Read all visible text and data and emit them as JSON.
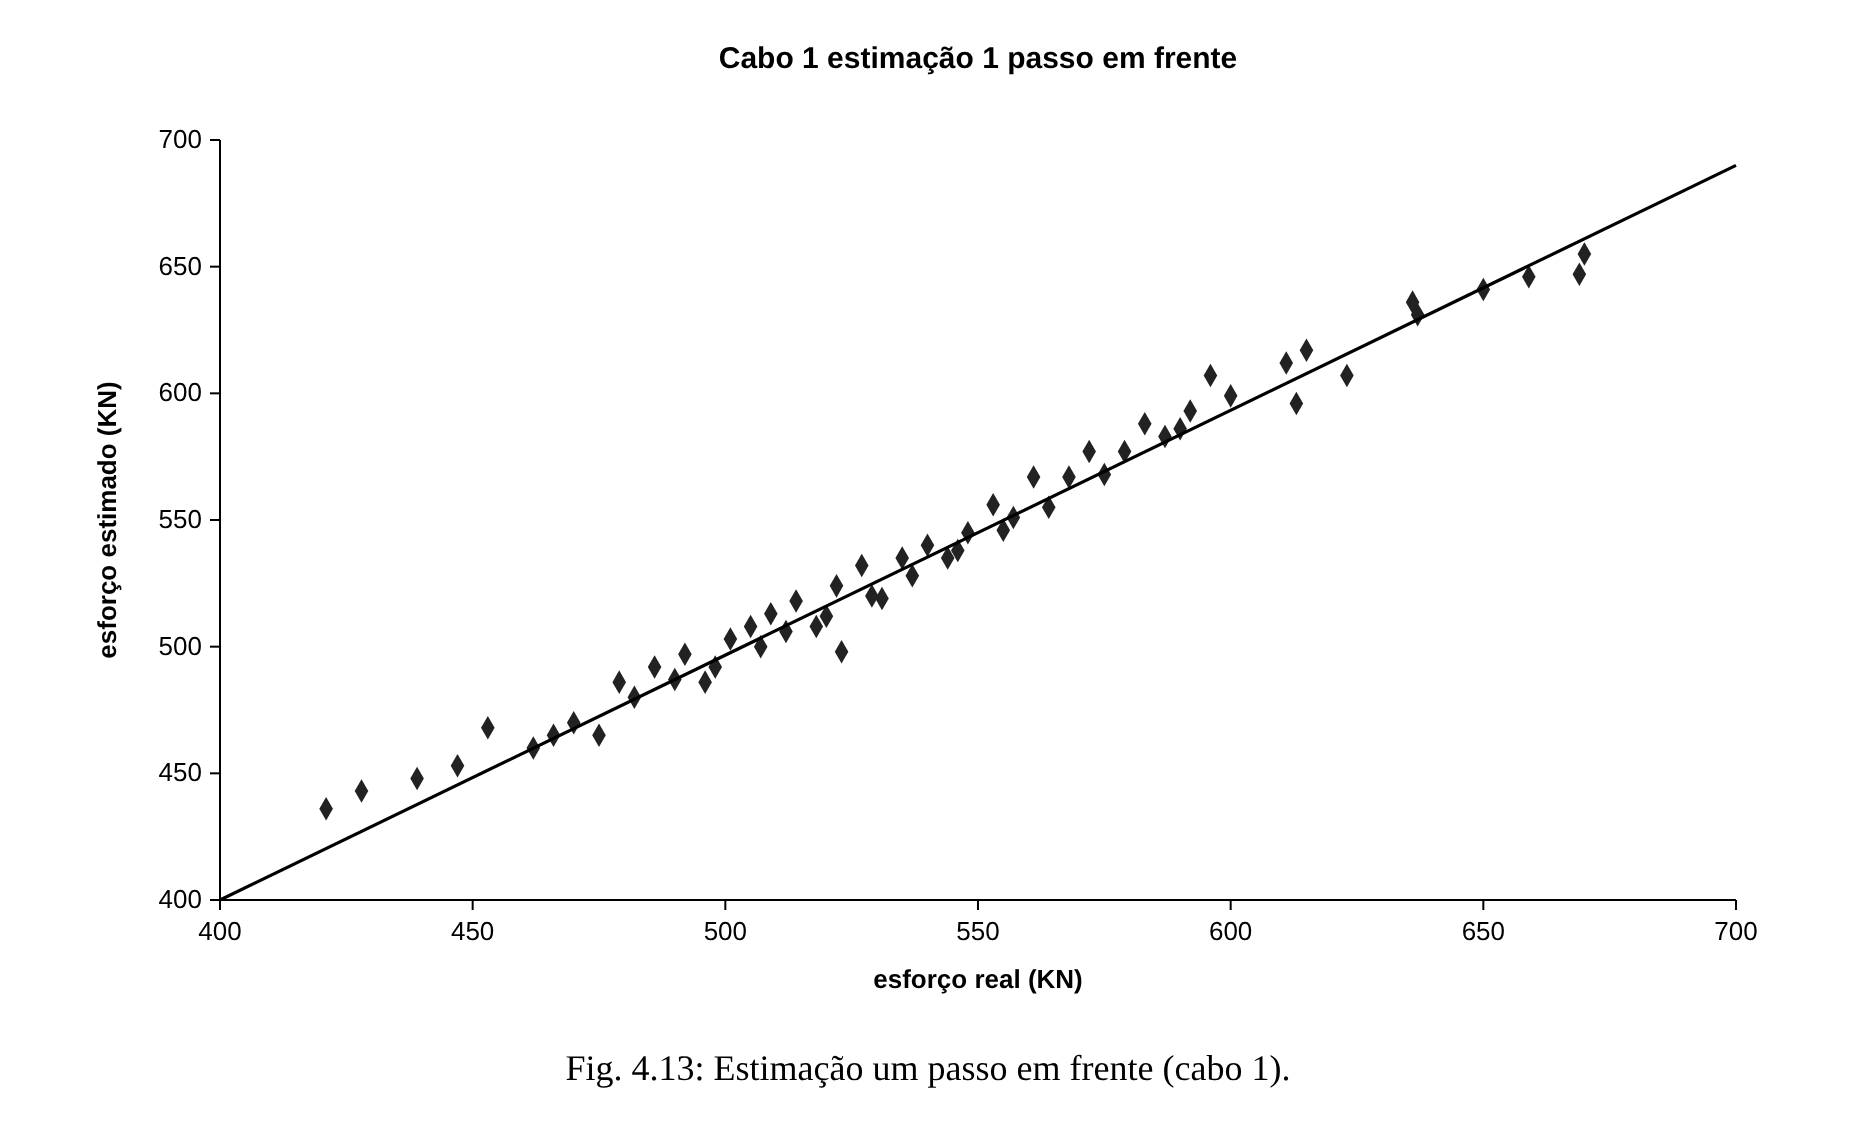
{
  "chart_data": {
    "type": "scatter",
    "title": "Cabo 1 estimação 1 passo em frente",
    "xlabel": "esforço real (KN)",
    "ylabel": "esforço estimado (KN)",
    "annotations": [
      "Fig. 4.13: Estimação um passo em frente (cabo 1)."
    ],
    "xlim": [
      400,
      700
    ],
    "xticks": [
      400,
      450,
      500,
      550,
      600,
      650,
      700
    ],
    "ylim": [
      400,
      700
    ],
    "yticks": [
      400,
      450,
      500,
      550,
      600,
      650,
      700
    ],
    "grid": false,
    "marker": "diamond",
    "series": [
      {
        "color": "#222222",
        "x": [
          421,
          428,
          439,
          447,
          453,
          462,
          470,
          475,
          479,
          486,
          492,
          496,
          501,
          505,
          509,
          514,
          523,
          518,
          522,
          527,
          531,
          535,
          540,
          544,
          548,
          553,
          557,
          561,
          568,
          572,
          579,
          583,
          587,
          592,
          596,
          600,
          611,
          613,
          615,
          623,
          636,
          637,
          650,
          659,
          669,
          670,
          466,
          482,
          490,
          498,
          507,
          512,
          520,
          529,
          537,
          546,
          555,
          564,
          575,
          590
        ],
        "values": [
          436,
          443,
          448,
          453,
          468,
          460,
          470,
          465,
          486,
          492,
          497,
          486,
          503,
          508,
          513,
          518,
          498,
          508,
          524,
          532,
          519,
          535,
          540,
          535,
          545,
          556,
          551,
          567,
          567,
          577,
          577,
          588,
          583,
          593,
          607,
          599,
          612,
          596,
          617,
          607,
          636,
          631,
          641,
          646,
          647,
          655,
          465,
          480,
          487,
          492,
          500,
          506,
          512,
          520,
          528,
          538,
          546,
          555,
          568,
          586
        ]
      },
      {
        "type": "line",
        "color": "#000000",
        "marker": "none",
        "x": [
          400,
          700
        ],
        "values": [
          400,
          690
        ]
      }
    ]
  }
}
